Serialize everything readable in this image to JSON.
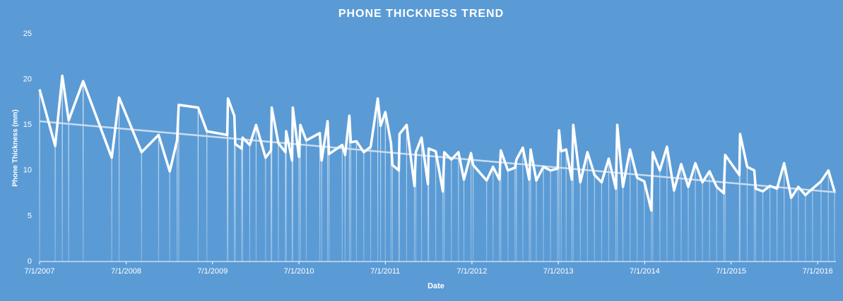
{
  "chart_data": {
    "type": "line",
    "title": "PHONE THICKNESS TREND",
    "xlabel": "Date",
    "ylabel": "Phone Thickness (mm)",
    "color": "#ffffff",
    "x": [
      "2007-07-01",
      "2007-09-05",
      "2007-10-05",
      "2007-11-01",
      "2008-01-01",
      "2008-05-01",
      "2008-06-01",
      "2008-09-04",
      "2008-11-15",
      "2009-01-01",
      "2009-02-01",
      "2009-02-08",
      "2009-05-01",
      "2009-06-07",
      "2009-09-01",
      "2009-09-04",
      "2009-10-01",
      "2009-10-05",
      "2009-11-01",
      "2009-11-05",
      "2009-12-05",
      "2010-01-01",
      "2010-02-10",
      "2010-03-05",
      "2010-03-08",
      "2010-04-05",
      "2010-05-05",
      "2010-05-08",
      "2010-06-02",
      "2010-06-05",
      "2010-07-01",
      "2010-07-07",
      "2010-08-01",
      "2010-09-27",
      "2010-10-05",
      "2010-10-30",
      "2010-11-05",
      "2010-12-31",
      "2011-01-12",
      "2011-01-30",
      "2011-02-05",
      "2011-03-01",
      "2011-04-01",
      "2011-04-30",
      "2011-05-30",
      "2011-06-11",
      "2011-07-01",
      "2011-07-25",
      "2011-07-31",
      "2011-08-27",
      "2011-08-30",
      "2011-09-29",
      "2011-11-01",
      "2011-11-07",
      "2011-12-01",
      "2011-12-28",
      "2011-12-31",
      "2012-01-30",
      "2012-02-29",
      "2012-03-06",
      "2012-04-05",
      "2012-05-05",
      "2012-05-28",
      "2012-06-27",
      "2012-07-06",
      "2012-09-01",
      "2012-09-28",
      "2012-10-25",
      "2012-10-31",
      "2012-11-30",
      "2012-12-30",
      "2013-01-05",
      "2013-02-01",
      "2013-02-28",
      "2013-03-06",
      "2013-03-30",
      "2013-04-29",
      "2013-05-29",
      "2013-06-28",
      "2013-07-04",
      "2013-07-13",
      "2013-08-03",
      "2013-08-27",
      "2013-09-02",
      "2013-10-02",
      "2013-11-01",
      "2013-12-01",
      "2013-12-31",
      "2014-01-30",
      "2014-03-01",
      "2014-03-07",
      "2014-03-31",
      "2014-04-30",
      "2014-05-30",
      "2014-06-29",
      "2014-07-29",
      "2014-08-04",
      "2014-09-03",
      "2014-10-03",
      "2014-11-02",
      "2014-12-02",
      "2015-01-01",
      "2015-01-31",
      "2015-03-02",
      "2015-04-01",
      "2015-05-01",
      "2015-05-31",
      "2015-06-06",
      "2015-08-05",
      "2015-08-08",
      "2015-09-07",
      "2015-10-07",
      "2015-10-13",
      "2015-11-12",
      "2015-12-12",
      "2016-01-11",
      "2016-02-10",
      "2016-03-11",
      "2016-04-10",
      "2016-05-10",
      "2016-06-09",
      "2016-07-15",
      "2016-08-15",
      "2016-09-10"
    ],
    "values": [
      18.9,
      12.7,
      20.4,
      15.5,
      19.8,
      11.4,
      18.0,
      12.0,
      13.9,
      9.9,
      13.3,
      17.2,
      16.9,
      14.3,
      13.9,
      17.9,
      16.0,
      12.9,
      12.4,
      13.6,
      12.8,
      15.0,
      11.4,
      12.2,
      16.9,
      13.0,
      12.0,
      14.3,
      11.1,
      16.9,
      11.5,
      15.0,
      13.3,
      14.1,
      11.1,
      15.4,
      11.8,
      12.8,
      11.7,
      16.0,
      13.1,
      13.2,
      12.0,
      12.6,
      17.9,
      14.9,
      16.4,
      13.0,
      10.6,
      10.0,
      14.0,
      15.0,
      8.3,
      12.0,
      13.6,
      8.5,
      12.4,
      12.1,
      7.7,
      12.0,
      11.2,
      12.0,
      9.0,
      11.9,
      10.6,
      8.9,
      10.4,
      9.0,
      12.2,
      10.0,
      10.3,
      11.2,
      12.5,
      9.0,
      12.3,
      8.9,
      10.4,
      10.0,
      10.2,
      14.4,
      12.1,
      12.3,
      9.0,
      15.0,
      8.7,
      12.0,
      9.5,
      8.7,
      11.3,
      8.0,
      15.0,
      8.2,
      12.3,
      9.2,
      8.8,
      5.6,
      12.0,
      10.0,
      12.6,
      7.8,
      10.7,
      8.2,
      10.8,
      8.7,
      9.9,
      8.2,
      7.5,
      11.7,
      9.5,
      14.0,
      10.4,
      10.0,
      8.0,
      7.7,
      8.3,
      8.0,
      10.8,
      7.0,
      8.2,
      7.3,
      8.0,
      8.8,
      10.0,
      7.7
    ],
    "trendline": {
      "x": [
        "2007-07-01",
        "2016-09-16"
      ],
      "values": [
        15.4,
        7.6
      ],
      "color": "#c9dcf0"
    },
    "xlim": [
      "2007-07-01",
      "2016-09-16"
    ],
    "xticks": [
      {
        "value": "2007-07-01",
        "label": "7/1/2007"
      },
      {
        "value": "2008-07-01",
        "label": "7/1/2008"
      },
      {
        "value": "2009-07-01",
        "label": "7/1/2009"
      },
      {
        "value": "2010-07-01",
        "label": "7/1/2010"
      },
      {
        "value": "2011-07-01",
        "label": "7/1/2011"
      },
      {
        "value": "2012-07-01",
        "label": "7/1/2012"
      },
      {
        "value": "2013-07-01",
        "label": "7/1/2013"
      },
      {
        "value": "2014-07-01",
        "label": "7/1/2014"
      },
      {
        "value": "2015-07-01",
        "label": "7/1/2015"
      },
      {
        "value": "2016-07-01",
        "label": "7/1/2016"
      }
    ],
    "ylim": [
      0,
      25
    ],
    "yticks": [
      0,
      5,
      10,
      15,
      20,
      25
    ],
    "grid": false,
    "drop_lines": true
  }
}
